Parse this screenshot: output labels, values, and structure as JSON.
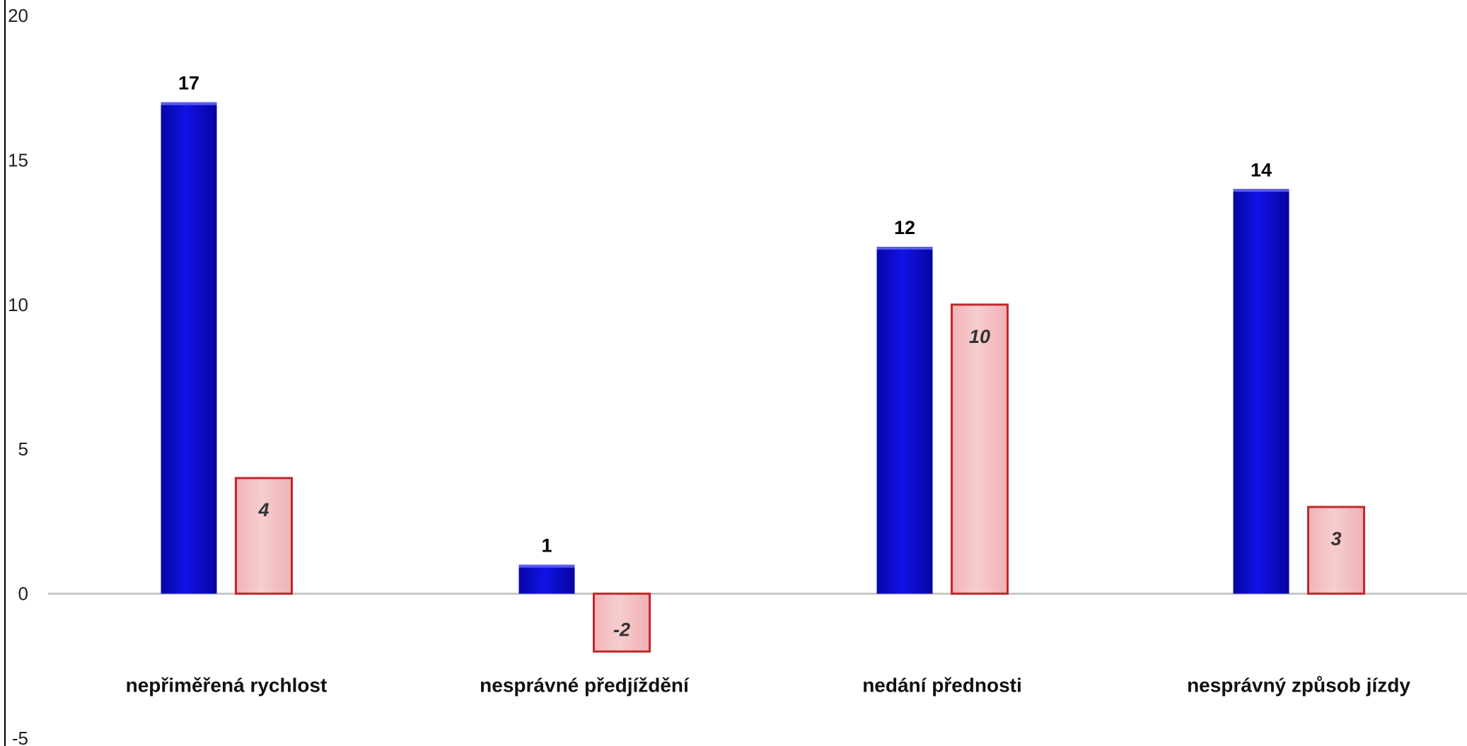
{
  "chart_data": {
    "type": "bar",
    "title": "",
    "xlabel": "",
    "ylabel": "",
    "categories": [
      "nepřiměřená rychlost",
      "nesprávné předjíždění",
      "nedání přednosti",
      "nesprávný způsob jízdy"
    ],
    "series": [
      {
        "values": [
          17,
          1,
          12,
          14
        ],
        "color": "#0a0ad0"
      },
      {
        "values": [
          4,
          -2,
          10,
          3
        ],
        "color": "#f4c4c6",
        "edge_color": "#c0282c"
      }
    ],
    "ylim": [
      -5,
      20
    ],
    "yticks": [
      -5,
      0,
      5,
      10,
      15,
      20
    ],
    "grid": false,
    "legend": "top-right (cut off)"
  }
}
